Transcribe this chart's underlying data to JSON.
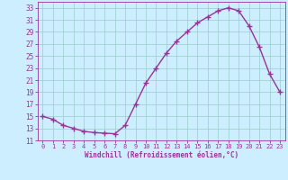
{
  "x": [
    0,
    1,
    2,
    3,
    4,
    5,
    6,
    7,
    8,
    9,
    10,
    11,
    12,
    13,
    14,
    15,
    16,
    17,
    18,
    19,
    20,
    21,
    22,
    23
  ],
  "y": [
    15,
    14.5,
    13.5,
    13,
    12.5,
    12.3,
    12.2,
    12.1,
    13.5,
    17,
    20.5,
    23,
    25.5,
    27.5,
    29,
    30.5,
    31.5,
    32.5,
    33,
    32.5,
    30,
    26.5,
    22,
    19
  ],
  "line_color": "#993399",
  "marker": "+",
  "bg_color": "#cceeff",
  "grid_color": "#99cccc",
  "xlabel": "Windchill (Refroidissement éolien,°C)",
  "xlabel_color": "#993399",
  "tick_color": "#993399",
  "ylim": [
    11,
    34
  ],
  "yticks": [
    11,
    13,
    15,
    17,
    19,
    21,
    23,
    25,
    27,
    29,
    31,
    33
  ],
  "xticks": [
    0,
    1,
    2,
    3,
    4,
    5,
    6,
    7,
    8,
    9,
    10,
    11,
    12,
    13,
    14,
    15,
    16,
    17,
    18,
    19,
    20,
    21,
    22,
    23
  ],
  "xlim": [
    -0.5,
    23.5
  ]
}
